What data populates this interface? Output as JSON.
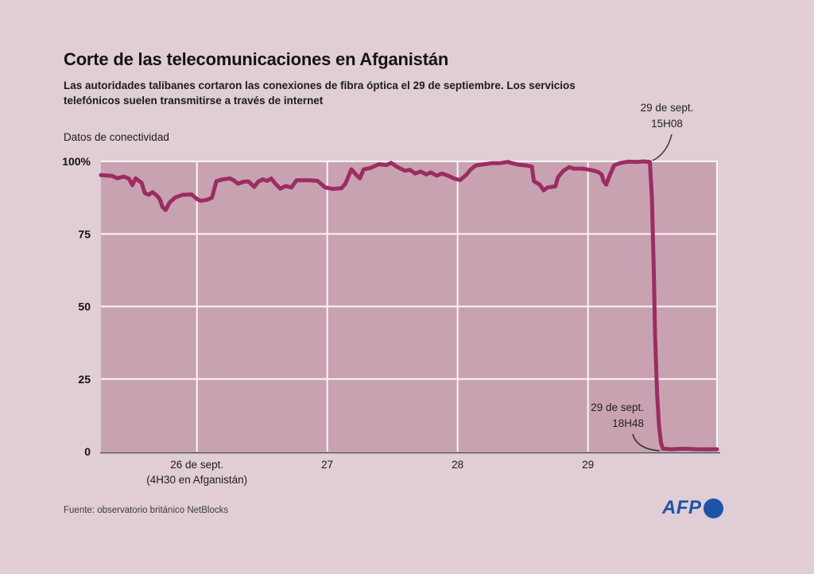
{
  "header": {
    "title": "Corte de las telecomunicaciones en Afganistán",
    "subtitle_line1": "Las autoridades talibanes cortaron las conexiones de fibra óptica el 29 de septiembre. Los servicios",
    "subtitle_line2": "telefónicos suelen transmitirse a través de internet"
  },
  "chart_data": {
    "type": "line",
    "title": "Corte de las telecomunicaciones en Afganistán",
    "unit_label": "Datos de conectividad",
    "ylim": [
      0,
      100
    ],
    "xlim": [
      25.264,
      29.99
    ],
    "grid": true,
    "yticks": [
      {
        "v": 100,
        "label": "100%"
      },
      {
        "v": 75,
        "label": "75"
      },
      {
        "v": 50,
        "label": "50"
      },
      {
        "v": 25,
        "label": "25"
      },
      {
        "v": 0,
        "label": "0"
      }
    ],
    "xticks": [
      {
        "v": 26,
        "label": "26 de sept.",
        "sublabel": "(4H30 en Afganistán)"
      },
      {
        "v": 27,
        "label": "27"
      },
      {
        "v": 28,
        "label": "28"
      },
      {
        "v": 29,
        "label": "29"
      }
    ],
    "colors": {
      "page_bg": "#e0cdd6",
      "plot_bg": "#c9a2b2",
      "grid": "#faf5f8",
      "axis": "#4d4d4d",
      "line": "#9b2d63",
      "annotation_pointer": "#333333",
      "afp_blue": "#1d54a6"
    },
    "series": [
      {
        "name": "Datos de conectividad (%)",
        "color": "#9b2d63",
        "points": [
          [
            25.264,
            95.3
          ],
          [
            25.35,
            95.0
          ],
          [
            25.39,
            94.2
          ],
          [
            25.44,
            94.8
          ],
          [
            25.48,
            94.0
          ],
          [
            25.505,
            91.8
          ],
          [
            25.53,
            94.2
          ],
          [
            25.555,
            93.3
          ],
          [
            25.575,
            92.7
          ],
          [
            25.6,
            89.1
          ],
          [
            25.63,
            88.5
          ],
          [
            25.66,
            89.4
          ],
          [
            25.69,
            88.3
          ],
          [
            25.715,
            87.0
          ],
          [
            25.735,
            84.4
          ],
          [
            25.76,
            83.2
          ],
          [
            25.79,
            85.8
          ],
          [
            25.835,
            87.6
          ],
          [
            25.89,
            88.5
          ],
          [
            25.96,
            88.6
          ],
          [
            26.0,
            87.0
          ],
          [
            26.03,
            86.4
          ],
          [
            26.08,
            86.8
          ],
          [
            26.115,
            87.5
          ],
          [
            26.15,
            93.2
          ],
          [
            26.2,
            93.8
          ],
          [
            26.255,
            94.1
          ],
          [
            26.285,
            93.4
          ],
          [
            26.315,
            92.3
          ],
          [
            26.36,
            93.0
          ],
          [
            26.395,
            93.1
          ],
          [
            26.44,
            91.2
          ],
          [
            26.47,
            93.0
          ],
          [
            26.505,
            93.8
          ],
          [
            26.54,
            93.3
          ],
          [
            26.57,
            94.1
          ],
          [
            26.6,
            92.4
          ],
          [
            26.64,
            90.6
          ],
          [
            26.68,
            91.5
          ],
          [
            26.725,
            91.0
          ],
          [
            26.765,
            93.5
          ],
          [
            26.865,
            93.5
          ],
          [
            26.925,
            93.3
          ],
          [
            26.985,
            91.0
          ],
          [
            27.045,
            90.5
          ],
          [
            27.11,
            90.8
          ],
          [
            27.14,
            92.3
          ],
          [
            27.185,
            97.3
          ],
          [
            27.23,
            95.0
          ],
          [
            27.25,
            94.2
          ],
          [
            27.28,
            97.3
          ],
          [
            27.33,
            97.7
          ],
          [
            27.395,
            99.0
          ],
          [
            27.455,
            98.7
          ],
          [
            27.49,
            99.5
          ],
          [
            27.535,
            98.1
          ],
          [
            27.595,
            96.8
          ],
          [
            27.635,
            97.1
          ],
          [
            27.675,
            95.8
          ],
          [
            27.715,
            96.5
          ],
          [
            27.76,
            95.5
          ],
          [
            27.795,
            96.2
          ],
          [
            27.84,
            95.1
          ],
          [
            27.88,
            95.8
          ],
          [
            27.915,
            95.3
          ],
          [
            27.98,
            94.0
          ],
          [
            28.02,
            93.6
          ],
          [
            28.065,
            95.3
          ],
          [
            28.1,
            97.2
          ],
          [
            28.14,
            98.6
          ],
          [
            28.205,
            99.0
          ],
          [
            28.265,
            99.4
          ],
          [
            28.325,
            99.4
          ],
          [
            28.385,
            99.8
          ],
          [
            28.415,
            99.4
          ],
          [
            28.465,
            98.9
          ],
          [
            28.525,
            98.6
          ],
          [
            28.57,
            98.2
          ],
          [
            28.585,
            93.2
          ],
          [
            28.63,
            92.0
          ],
          [
            28.66,
            90.0
          ],
          [
            28.69,
            91.0
          ],
          [
            28.75,
            91.4
          ],
          [
            28.77,
            94.5
          ],
          [
            28.81,
            96.7
          ],
          [
            28.855,
            98.0
          ],
          [
            28.89,
            97.5
          ],
          [
            28.95,
            97.5
          ],
          [
            29.0,
            97.2
          ],
          [
            29.045,
            96.8
          ],
          [
            29.08,
            96.3
          ],
          [
            29.105,
            95.5
          ],
          [
            29.12,
            93.2
          ],
          [
            29.14,
            92.0
          ],
          [
            29.165,
            95.0
          ],
          [
            29.2,
            98.6
          ],
          [
            29.245,
            99.4
          ],
          [
            29.305,
            99.9
          ],
          [
            29.385,
            99.8
          ],
          [
            29.425,
            100.0
          ],
          [
            29.475,
            99.8
          ],
          [
            29.49,
            88.0
          ],
          [
            29.505,
            62.0
          ],
          [
            29.515,
            40.0
          ],
          [
            29.53,
            20.0
          ],
          [
            29.545,
            9.0
          ],
          [
            29.56,
            3.0
          ],
          [
            29.575,
            1.0
          ],
          [
            29.64,
            0.8
          ],
          [
            29.73,
            1.0
          ],
          [
            29.85,
            0.8
          ],
          [
            29.99,
            0.8
          ]
        ]
      }
    ],
    "annotations": [
      {
        "id": "cutoff-start",
        "line1": "29 de sept.",
        "line2": "15H08",
        "x": 29.475,
        "y": 100
      },
      {
        "id": "cutoff-zero",
        "line1": "29 de sept.",
        "line2": "18H48",
        "x": 29.575,
        "y": 0
      }
    ]
  },
  "footer": {
    "source": "Fuente: observatorio británico NetBlocks",
    "logo_text": "AFP"
  }
}
